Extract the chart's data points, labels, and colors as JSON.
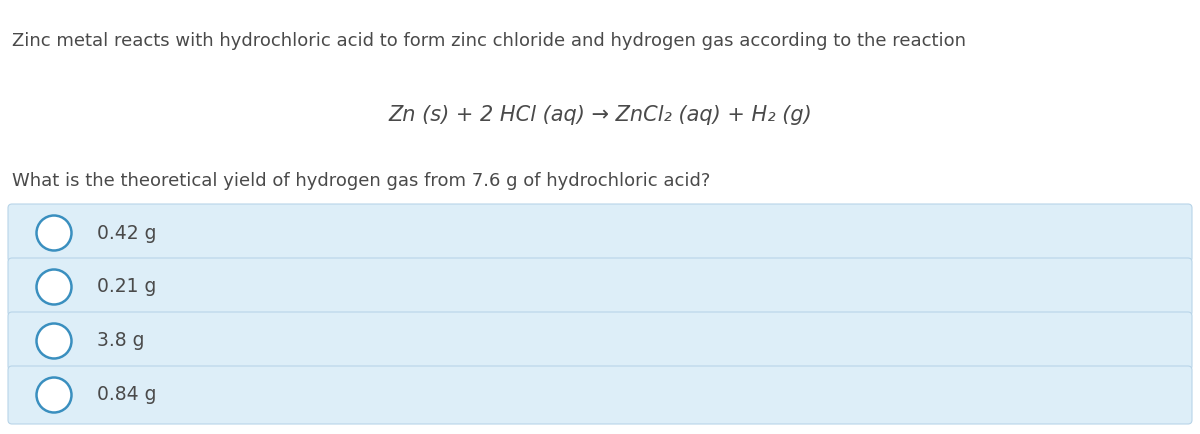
{
  "background_color": "#ffffff",
  "text_color": "#4a4a4a",
  "option_bg_color": "#ddeef8",
  "option_border_color": "#b8d4e8",
  "circle_color": "#3a8fbf",
  "intro_text": "Zinc metal reacts with hydrochloric acid to form zinc chloride and hydrogen gas according to the reaction",
  "equation_text": "Zn (s) + 2 HCl (aq) → ZnCl₂ (aq) + H₂ (g)",
  "question_text": "What is the theoretical yield of hydrogen gas from 7.6 g of hydrochloric acid?",
  "options": [
    "0.42 g",
    "0.21 g",
    "3.8 g",
    "0.84 g"
  ],
  "fig_width": 12.0,
  "fig_height": 4.34,
  "dpi": 100,
  "font_size_intro": 13.0,
  "font_size_equation": 15.0,
  "font_size_question": 13.0,
  "font_size_option": 13.5
}
